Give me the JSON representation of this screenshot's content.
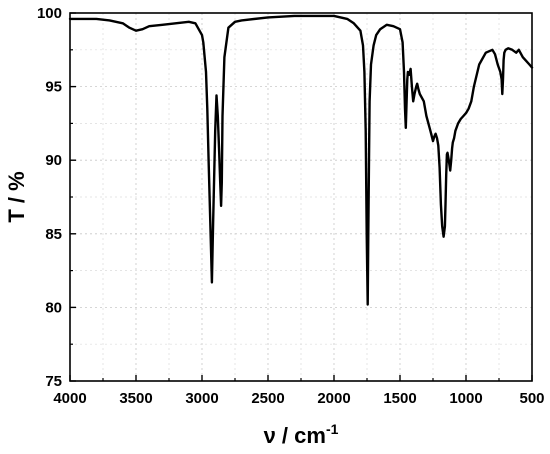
{
  "chart_data": {
    "type": "line",
    "title": "",
    "xlabel": "ν / cm",
    "xlabel_superscript": "-1",
    "ylabel": "T / %",
    "xlim": [
      4000,
      500
    ],
    "ylim": [
      75,
      100
    ],
    "x_reversed": true,
    "grid": true,
    "x_ticks": [
      4000,
      3500,
      3000,
      2500,
      2000,
      1500,
      1000,
      500
    ],
    "y_ticks": [
      75,
      80,
      85,
      90,
      95,
      100
    ],
    "series": [
      {
        "x": [
          4000,
          3900,
          3800,
          3700,
          3600,
          3550,
          3500,
          3450,
          3400,
          3300,
          3200,
          3100,
          3050,
          3000,
          2990,
          2970,
          2960,
          2950,
          2935,
          2925,
          2915,
          2900,
          2890,
          2880,
          2870,
          2862,
          2855,
          2850,
          2845,
          2830,
          2800,
          2750,
          2700,
          2500,
          2300,
          2200,
          2000,
          1900,
          1850,
          1800,
          1780,
          1770,
          1760,
          1752,
          1745,
          1740,
          1735,
          1730,
          1720,
          1700,
          1680,
          1650,
          1600,
          1550,
          1500,
          1480,
          1470,
          1462,
          1456,
          1450,
          1445,
          1440,
          1430,
          1420,
          1410,
          1400,
          1390,
          1377,
          1370,
          1360,
          1350,
          1320,
          1300,
          1270,
          1250,
          1240,
          1230,
          1220,
          1210,
          1200,
          1190,
          1180,
          1170,
          1160,
          1155,
          1150,
          1145,
          1140,
          1130,
          1120,
          1112,
          1105,
          1100,
          1090,
          1080,
          1060,
          1040,
          1020,
          1000,
          980,
          960,
          940,
          900,
          850,
          800,
          780,
          760,
          740,
          730,
          725,
          720,
          715,
          710,
          700,
          680,
          650,
          620,
          600,
          570,
          550,
          520,
          500
        ],
        "y": [
          99.6,
          99.6,
          99.6,
          99.5,
          99.3,
          99.0,
          98.8,
          98.9,
          99.1,
          99.2,
          99.3,
          99.4,
          99.3,
          98.5,
          98.0,
          96.0,
          93.5,
          90.0,
          85.0,
          81.7,
          86.0,
          92.0,
          94.4,
          93.0,
          90.5,
          88.5,
          86.9,
          88.5,
          93.0,
          97.0,
          99.0,
          99.4,
          99.5,
          99.7,
          99.8,
          99.8,
          99.8,
          99.6,
          99.3,
          98.8,
          97.8,
          96.0,
          92.0,
          85.0,
          80.2,
          85.0,
          90.0,
          94.0,
          96.5,
          97.8,
          98.5,
          98.9,
          99.2,
          99.1,
          98.9,
          98.0,
          96.0,
          93.5,
          92.2,
          94.0,
          95.5,
          96.0,
          95.8,
          96.2,
          95.0,
          94.0,
          94.5,
          95.0,
          95.2,
          94.8,
          94.5,
          94.0,
          93.0,
          92.0,
          91.3,
          91.6,
          91.8,
          91.5,
          91.0,
          89.5,
          87.0,
          85.5,
          84.8,
          85.5,
          87.0,
          89.0,
          90.4,
          90.5,
          90.0,
          89.3,
          90.0,
          90.8,
          91.2,
          91.5,
          92.0,
          92.5,
          92.8,
          93.0,
          93.2,
          93.5,
          94.0,
          95.0,
          96.5,
          97.3,
          97.5,
          97.2,
          96.5,
          96.0,
          95.5,
          94.5,
          95.5,
          96.8,
          97.3,
          97.5,
          97.6,
          97.5,
          97.3,
          97.5,
          97.0,
          96.8,
          96.5,
          96.3
        ]
      }
    ]
  }
}
